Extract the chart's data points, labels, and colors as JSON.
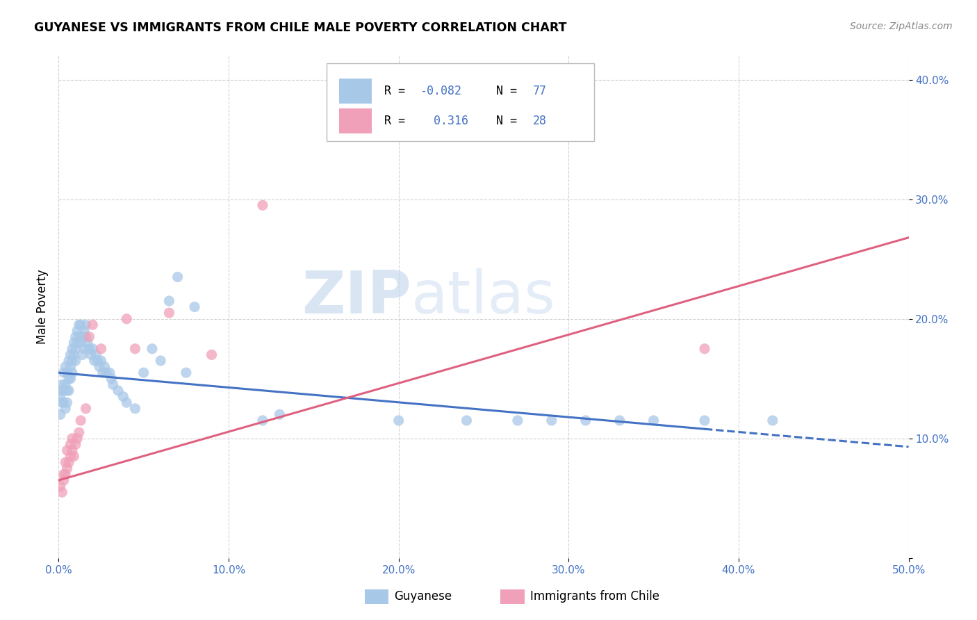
{
  "title": "GUYANESE VS IMMIGRANTS FROM CHILE MALE POVERTY CORRELATION CHART",
  "source": "Source: ZipAtlas.com",
  "ylabel": "Male Poverty",
  "xlim": [
    0.0,
    0.5
  ],
  "ylim": [
    0.0,
    0.42
  ],
  "R1": "-0.082",
  "N1": "77",
  "R2": "0.316",
  "N2": "28",
  "color_blue": "#a8c8e8",
  "color_pink": "#f0a0b8",
  "trend_blue": "#4472c4",
  "trend_pink": "#e06080",
  "watermark_zip": "ZIP",
  "watermark_atlas": "atlas",
  "legend_label1": "Guyanese",
  "legend_label2": "Immigrants from Chile",
  "label_color": "#4472c4",
  "text_color_RN": "#4472c4",
  "background_color": "#ffffff",
  "guyanese_x": [
    0.001,
    0.001,
    0.002,
    0.002,
    0.002,
    0.003,
    0.003,
    0.003,
    0.004,
    0.004,
    0.004,
    0.005,
    0.005,
    0.005,
    0.006,
    0.006,
    0.006,
    0.007,
    0.007,
    0.007,
    0.008,
    0.008,
    0.008,
    0.009,
    0.009,
    0.01,
    0.01,
    0.01,
    0.011,
    0.011,
    0.012,
    0.012,
    0.013,
    0.013,
    0.014,
    0.014,
    0.015,
    0.015,
    0.016,
    0.016,
    0.017,
    0.018,
    0.019,
    0.02,
    0.021,
    0.022,
    0.023,
    0.024,
    0.025,
    0.026,
    0.027,
    0.028,
    0.03,
    0.031,
    0.032,
    0.035,
    0.038,
    0.04,
    0.045,
    0.05,
    0.055,
    0.06,
    0.065,
    0.07,
    0.075,
    0.08,
    0.12,
    0.13,
    0.2,
    0.24,
    0.27,
    0.29,
    0.31,
    0.33,
    0.35,
    0.38,
    0.42
  ],
  "guyanese_y": [
    0.135,
    0.12,
    0.145,
    0.13,
    0.14,
    0.155,
    0.14,
    0.13,
    0.16,
    0.145,
    0.125,
    0.155,
    0.14,
    0.13,
    0.165,
    0.15,
    0.14,
    0.17,
    0.16,
    0.15,
    0.175,
    0.165,
    0.155,
    0.18,
    0.17,
    0.185,
    0.175,
    0.165,
    0.19,
    0.18,
    0.195,
    0.185,
    0.195,
    0.18,
    0.185,
    0.17,
    0.19,
    0.175,
    0.195,
    0.185,
    0.18,
    0.175,
    0.17,
    0.175,
    0.165,
    0.17,
    0.165,
    0.16,
    0.165,
    0.155,
    0.16,
    0.155,
    0.155,
    0.15,
    0.145,
    0.14,
    0.135,
    0.13,
    0.125,
    0.155,
    0.175,
    0.165,
    0.215,
    0.235,
    0.155,
    0.21,
    0.115,
    0.12,
    0.115,
    0.115,
    0.115,
    0.115,
    0.115,
    0.115,
    0.115,
    0.115,
    0.115
  ],
  "chile_x": [
    0.001,
    0.002,
    0.003,
    0.003,
    0.004,
    0.004,
    0.005,
    0.005,
    0.006,
    0.007,
    0.007,
    0.008,
    0.008,
    0.009,
    0.01,
    0.011,
    0.012,
    0.013,
    0.016,
    0.018,
    0.02,
    0.025,
    0.04,
    0.045,
    0.065,
    0.09,
    0.12,
    0.38
  ],
  "chile_y": [
    0.06,
    0.055,
    0.065,
    0.07,
    0.07,
    0.08,
    0.075,
    0.09,
    0.08,
    0.085,
    0.095,
    0.09,
    0.1,
    0.085,
    0.095,
    0.1,
    0.105,
    0.115,
    0.125,
    0.185,
    0.195,
    0.175,
    0.2,
    0.175,
    0.205,
    0.17,
    0.295,
    0.175
  ],
  "blue_trend_solid_end": 0.38,
  "blue_trend_x0": 0.0,
  "blue_trend_y0": 0.155,
  "blue_trend_x1": 0.5,
  "blue_trend_y1": 0.093,
  "pink_trend_x0": 0.0,
  "pink_trend_y0": 0.065,
  "pink_trend_x1": 0.5,
  "pink_trend_y1": 0.268
}
